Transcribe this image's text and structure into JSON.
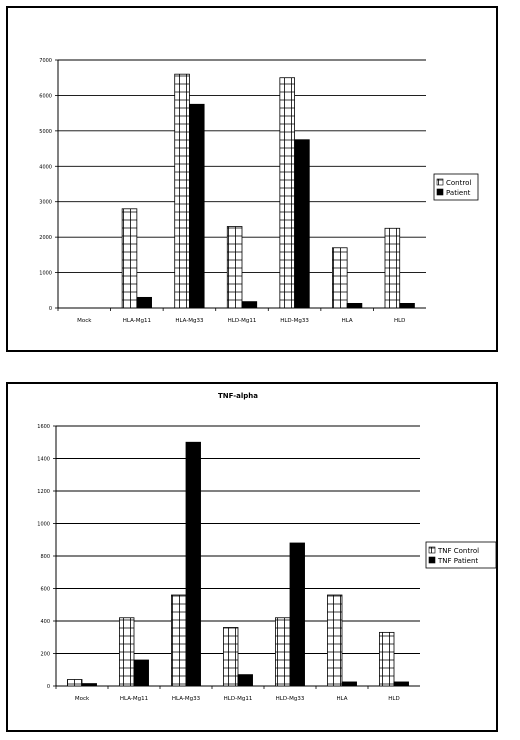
{
  "chart_data": [
    {
      "type": "bar",
      "title": "",
      "categories": [
        "Mock",
        "HLA-Mg11",
        "HLA-Mg33",
        "HLD-Mg11",
        "HLD-Mg33",
        "HLA",
        "HLD"
      ],
      "series": [
        {
          "name": "Control",
          "values": [
            0,
            2800,
            6600,
            2300,
            6500,
            1700,
            2250
          ]
        },
        {
          "name": "Patient",
          "values": [
            0,
            300,
            5750,
            180,
            4750,
            130,
            130
          ]
        }
      ],
      "ylim": [
        0,
        7000
      ],
      "yticks": [
        0,
        1000,
        2000,
        3000,
        4000,
        5000,
        6000,
        7000
      ],
      "grid": true,
      "legend": "right"
    },
    {
      "type": "bar",
      "title": "TNF-alpha",
      "categories": [
        "Mock",
        "HLA-Mg11",
        "HLA-Mg33",
        "HLD-Mg11",
        "HLD-Mg33",
        "HLA",
        "HLD"
      ],
      "series": [
        {
          "name": "TNF Control",
          "values": [
            40,
            420,
            560,
            360,
            420,
            560,
            330
          ]
        },
        {
          "name": "TNF Patient",
          "values": [
            15,
            160,
            1500,
            70,
            880,
            25,
            25
          ]
        }
      ],
      "ylim": [
        0,
        1600
      ],
      "yticks": [
        0,
        200,
        400,
        600,
        800,
        1000,
        1200,
        1400,
        1600
      ],
      "grid": true,
      "legend": "right"
    }
  ]
}
